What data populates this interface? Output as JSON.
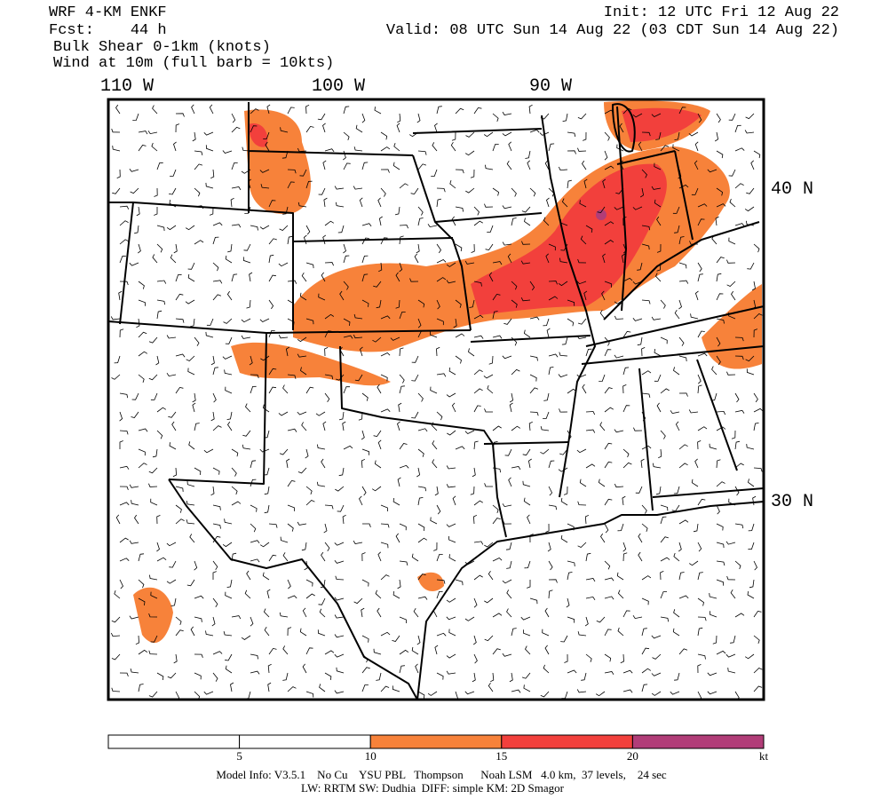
{
  "header": {
    "model": "WRF 4-KM ENKF",
    "forecast": "Fcst:    44 h",
    "field": "Bulk Shear 0-1km (knots)",
    "wind": "Wind at 10m (full barb = 10kts)",
    "init": "Init: 12 UTC Fri 12 Aug 22",
    "valid": "Valid: 08 UTC Sun 14 Aug 22 (03 CDT Sun 14 Aug 22)"
  },
  "map": {
    "longitude_labels": [
      "110 W",
      "100 W",
      "90 W"
    ],
    "latitude_labels": [
      "40 N",
      "30 N"
    ]
  },
  "colorbar": {
    "ticks": [
      5,
      10,
      15,
      20
    ],
    "unit": "kt",
    "colors": [
      "#ffffff",
      "#ffffff",
      "#f7823a",
      "#f2403c",
      "#b13d78"
    ]
  },
  "footer": {
    "line1": "Model Info: V3.5.1    No Cu    YSU PBL   Thompson      Noah LSM   4.0 km,  37 levels,    24 sec",
    "line2": "LW: RRTM SW: Dudhia  DIFF: simple KM: 2D Smagor"
  }
}
